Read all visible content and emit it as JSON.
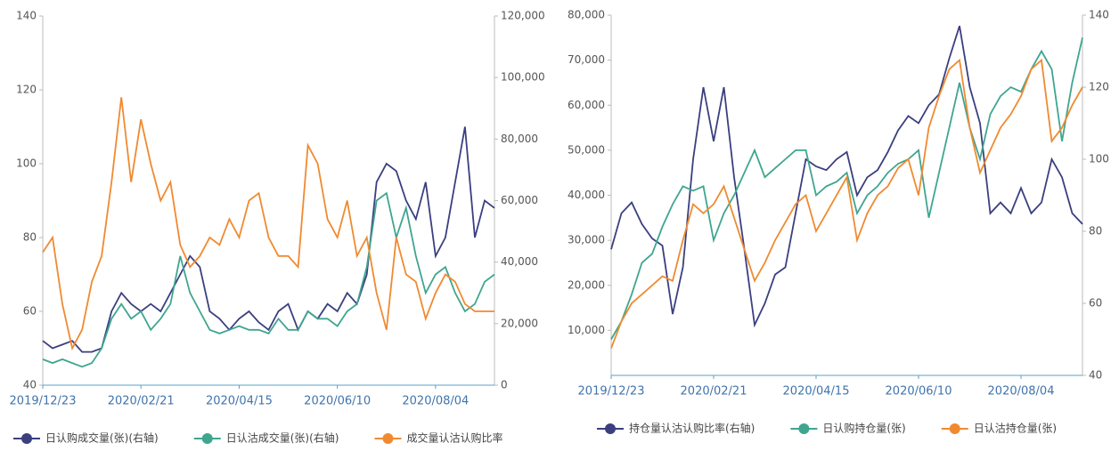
{
  "chart_data": [
    {
      "type": "line",
      "categories": [
        "2019/12/23",
        null,
        null,
        null,
        null,
        null,
        null,
        null,
        null,
        null,
        "2020/02/21",
        null,
        null,
        null,
        null,
        null,
        null,
        null,
        null,
        null,
        "2020/04/15",
        null,
        null,
        null,
        null,
        null,
        null,
        null,
        null,
        null,
        "2020/06/10",
        null,
        null,
        null,
        null,
        null,
        null,
        null,
        null,
        null,
        "2020/08/04",
        null,
        null,
        null,
        null,
        null,
        null
      ],
      "ylim": [
        40,
        140
      ],
      "yticks": [
        40,
        60,
        80,
        100,
        120,
        140
      ],
      "y2lim": [
        0,
        120000
      ],
      "y2ticks": [
        0,
        {
          "value": 20000,
          "label": "20,000"
        },
        {
          "value": 40000,
          "label": "40,000"
        },
        {
          "value": 60000,
          "label": "60,000"
        },
        {
          "value": 80000,
          "label": "80,000"
        },
        {
          "value": 100000,
          "label": "100,000"
        },
        {
          "value": 120000,
          "label": "120,000"
        }
      ],
      "series": [
        {
          "name": "日认购成交量(张)(右轴)",
          "color": "#3b3f7f",
          "axis": "y2",
          "values": [
            14400,
            12000,
            13200,
            14400,
            10800,
            10800,
            12000,
            24000,
            30000,
            26400,
            24000,
            26400,
            24000,
            30000,
            36000,
            42000,
            38400,
            24000,
            21600,
            18000,
            21600,
            24000,
            20400,
            18000,
            24000,
            26400,
            18000,
            24000,
            21600,
            26400,
            24000,
            30000,
            26400,
            36000,
            66000,
            72000,
            69600,
            60000,
            54000,
            66000,
            42000,
            48000,
            66000,
            84000,
            48000,
            60000,
            57600
          ]
        },
        {
          "name": "日认沽成交量(张)(右轴)",
          "color": "#3fa58f",
          "axis": "y2",
          "values": [
            8400,
            7200,
            8400,
            7200,
            6000,
            7200,
            12000,
            21600,
            26400,
            21600,
            24000,
            18000,
            21600,
            26400,
            42000,
            30000,
            24000,
            18000,
            16800,
            18000,
            19200,
            18000,
            18000,
            16800,
            21600,
            18000,
            18000,
            24000,
            21600,
            21600,
            19200,
            24000,
            26400,
            38400,
            60000,
            62400,
            48000,
            57600,
            42000,
            30000,
            36000,
            38400,
            30000,
            24000,
            26400,
            33600,
            36000
          ]
        },
        {
          "name": "成交量认沽认购比率",
          "color": "#f08a30",
          "values": [
            76,
            80,
            62,
            50,
            55,
            68,
            75,
            95,
            118,
            95,
            112,
            100,
            90,
            95,
            78,
            72,
            75,
            80,
            78,
            85,
            80,
            90,
            92,
            80,
            75,
            75,
            72,
            105,
            100,
            85,
            80,
            90,
            75,
            80,
            65,
            55,
            80,
            70,
            68,
            58,
            65,
            70,
            68,
            62,
            60,
            60,
            60
          ]
        }
      ]
    },
    {
      "type": "line",
      "categories": [
        "2019/12/23",
        null,
        null,
        null,
        null,
        null,
        null,
        null,
        null,
        null,
        "2020/02/21",
        null,
        null,
        null,
        null,
        null,
        null,
        null,
        null,
        null,
        "2020/04/15",
        null,
        null,
        null,
        null,
        null,
        null,
        null,
        null,
        null,
        "2020/06/10",
        null,
        null,
        null,
        null,
        null,
        null,
        null,
        null,
        null,
        "2020/08/04",
        null,
        null,
        null,
        null,
        null,
        null
      ],
      "ylim": [
        0,
        80000
      ],
      "yticks": [
        {
          "value": 10000,
          "label": "10,000"
        },
        {
          "value": 20000,
          "label": "20,000"
        },
        {
          "value": 30000,
          "label": "30,000"
        },
        {
          "value": 40000,
          "label": "40,000"
        },
        {
          "value": 50000,
          "label": "50,000"
        },
        {
          "value": 60000,
          "label": "60,000"
        },
        {
          "value": 70000,
          "label": "70,000"
        },
        {
          "value": 80000,
          "label": "80,000"
        }
      ],
      "y2lim": [
        40,
        140
      ],
      "y2ticks": [
        40,
        60,
        80,
        100,
        120,
        140
      ],
      "series": [
        {
          "name": "持仓量认沽认购比率(右轴)",
          "color": "#3b3f7f",
          "axis": "y2",
          "values": [
            75,
            85,
            88,
            82,
            78,
            76,
            57,
            70,
            100,
            120,
            105,
            120,
            95,
            75,
            54,
            60,
            68,
            70,
            85,
            100,
            98,
            97,
            100,
            102,
            90,
            95,
            97,
            102,
            108,
            112,
            110,
            115,
            118,
            128,
            137,
            120,
            110,
            85,
            88,
            85,
            92,
            85,
            88,
            100,
            95,
            85,
            82
          ]
        },
        {
          "name": "日认购持仓量(张)",
          "color": "#3fa58f",
          "values": [
            8000,
            12000,
            18000,
            25000,
            27000,
            33000,
            38000,
            42000,
            41000,
            42000,
            30000,
            36000,
            40000,
            45000,
            50000,
            44000,
            46000,
            48000,
            50000,
            50000,
            40000,
            42000,
            43000,
            45000,
            36000,
            40000,
            42000,
            45000,
            47000,
            48000,
            50000,
            35000,
            45000,
            55000,
            65000,
            55000,
            48000,
            58000,
            62000,
            64000,
            63000,
            68000,
            72000,
            68000,
            52000,
            65000,
            75000
          ]
        },
        {
          "name": "日认沽持仓量(张)",
          "color": "#f08a30",
          "values": [
            6000,
            12000,
            16000,
            18000,
            20000,
            22000,
            21000,
            30000,
            38000,
            36000,
            38000,
            42000,
            35000,
            28000,
            21000,
            25000,
            30000,
            34000,
            38000,
            40000,
            32000,
            36000,
            40000,
            44000,
            30000,
            36000,
            40000,
            42000,
            46000,
            48000,
            40000,
            55000,
            62000,
            68000,
            70000,
            55000,
            45000,
            50000,
            55000,
            58000,
            62000,
            68000,
            70000,
            52000,
            55000,
            60000,
            64000
          ]
        }
      ]
    }
  ]
}
